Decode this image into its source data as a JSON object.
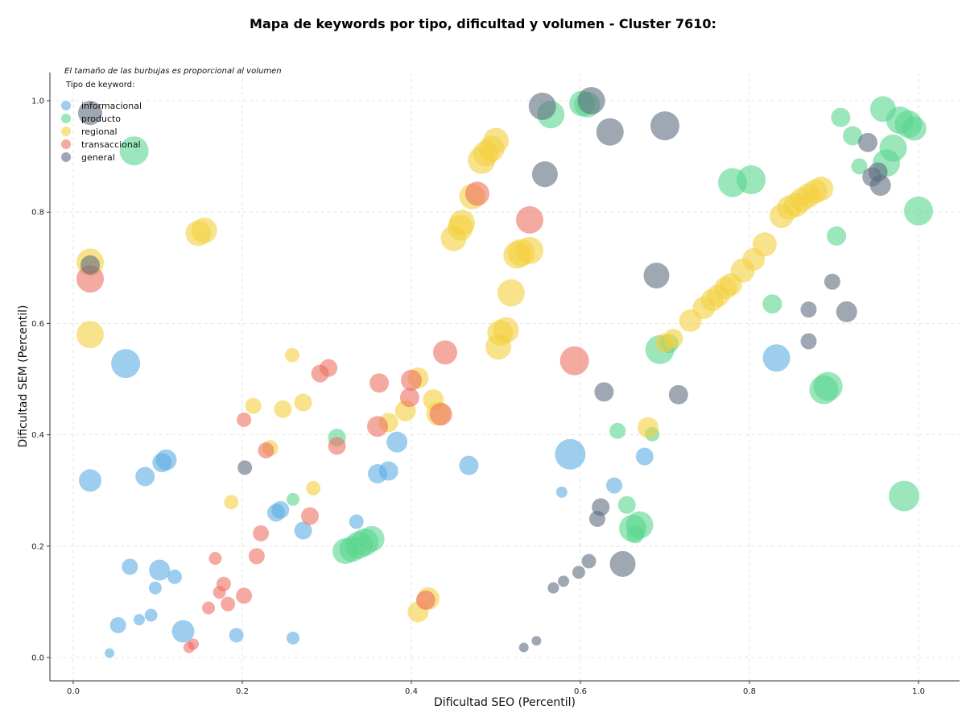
{
  "chart_data": {
    "type": "scatter",
    "title": "Mapa de keywords por tipo, dificultad y volumen - Cluster 7610:",
    "xlabel": "Dificultad SEO (Percentil)",
    "ylabel": "Dificultad SEM (Percentil)",
    "xlim": [
      -0.03,
      1.05
    ],
    "ylim": [
      -0.04,
      1.05
    ],
    "x_ticks": [
      "0.0",
      "0.2",
      "0.4",
      "0.6",
      "0.8",
      "1.0"
    ],
    "y_ticks": [
      "0.0",
      "0.2",
      "0.4",
      "0.6",
      "0.8",
      "1.0"
    ],
    "grid": true,
    "annotation": "El tamaño de las burbujas es proporcional al volumen",
    "legend_title": "Tipo de keyword:",
    "legend_position": "top-left",
    "series": [
      {
        "name": "informacional",
        "color": "#5DADE2",
        "points": [
          [
            0.062,
            0.528,
            18
          ],
          [
            0.02,
            0.318,
            14
          ],
          [
            0.085,
            0.325,
            12
          ],
          [
            0.105,
            0.35,
            12
          ],
          [
            0.11,
            0.355,
            13
          ],
          [
            0.067,
            0.163,
            10
          ],
          [
            0.102,
            0.157,
            13
          ],
          [
            0.097,
            0.125,
            8
          ],
          [
            0.12,
            0.145,
            9
          ],
          [
            0.053,
            0.058,
            10
          ],
          [
            0.078,
            0.068,
            7
          ],
          [
            0.092,
            0.076,
            8
          ],
          [
            0.13,
            0.047,
            14
          ],
          [
            0.043,
            0.008,
            6
          ],
          [
            0.193,
            0.04,
            9
          ],
          [
            0.26,
            0.035,
            8
          ],
          [
            0.24,
            0.26,
            11
          ],
          [
            0.245,
            0.265,
            11
          ],
          [
            0.272,
            0.228,
            11
          ],
          [
            0.335,
            0.244,
            9
          ],
          [
            0.36,
            0.33,
            12
          ],
          [
            0.373,
            0.335,
            12
          ],
          [
            0.383,
            0.387,
            13
          ],
          [
            0.468,
            0.345,
            12
          ],
          [
            0.588,
            0.365,
            19
          ],
          [
            0.578,
            0.297,
            7
          ],
          [
            0.64,
            0.309,
            10
          ],
          [
            0.676,
            0.361,
            11
          ],
          [
            0.832,
            0.538,
            17
          ]
        ]
      },
      {
        "name": "producto",
        "color": "#58D68D",
        "points": [
          [
            0.072,
            0.91,
            18
          ],
          [
            0.312,
            0.395,
            11
          ],
          [
            0.26,
            0.284,
            8
          ],
          [
            0.322,
            0.191,
            16
          ],
          [
            0.33,
            0.195,
            16
          ],
          [
            0.338,
            0.202,
            17
          ],
          [
            0.345,
            0.207,
            17
          ],
          [
            0.353,
            0.213,
            16
          ],
          [
            0.565,
            0.975,
            17
          ],
          [
            0.602,
            0.995,
            16
          ],
          [
            0.608,
            0.993,
            16
          ],
          [
            0.644,
            0.407,
            10
          ],
          [
            0.655,
            0.274,
            11
          ],
          [
            0.662,
            0.232,
            17
          ],
          [
            0.67,
            0.238,
            17
          ],
          [
            0.665,
            0.221,
            11
          ],
          [
            0.685,
            0.401,
            9
          ],
          [
            0.694,
            0.553,
            18
          ],
          [
            0.705,
            0.564,
            12
          ],
          [
            0.78,
            0.853,
            18
          ],
          [
            0.802,
            0.858,
            18
          ],
          [
            0.827,
            0.635,
            12
          ],
          [
            0.888,
            0.481,
            18
          ],
          [
            0.893,
            0.487,
            18
          ],
          [
            0.903,
            0.757,
            12
          ],
          [
            0.908,
            0.97,
            12
          ],
          [
            0.922,
            0.937,
            12
          ],
          [
            0.93,
            0.882,
            10
          ],
          [
            0.958,
            0.985,
            16
          ],
          [
            0.978,
            0.965,
            17
          ],
          [
            0.988,
            0.958,
            17
          ],
          [
            0.995,
            0.95,
            15
          ],
          [
            1.0,
            0.802,
            18
          ],
          [
            0.962,
            0.888,
            17
          ],
          [
            0.97,
            0.915,
            17
          ],
          [
            0.983,
            0.29,
            19
          ]
        ]
      },
      {
        "name": "regional",
        "color": "#F4D03F",
        "points": [
          [
            0.02,
            0.71,
            17
          ],
          [
            0.02,
            0.58,
            17
          ],
          [
            0.148,
            0.762,
            16
          ],
          [
            0.155,
            0.767,
            16
          ],
          [
            0.259,
            0.543,
            9
          ],
          [
            0.213,
            0.452,
            10
          ],
          [
            0.248,
            0.446,
            11
          ],
          [
            0.272,
            0.458,
            11
          ],
          [
            0.233,
            0.376,
            10
          ],
          [
            0.284,
            0.304,
            9
          ],
          [
            0.187,
            0.279,
            9
          ],
          [
            0.373,
            0.422,
            12
          ],
          [
            0.393,
            0.443,
            13
          ],
          [
            0.408,
            0.502,
            13
          ],
          [
            0.426,
            0.463,
            13
          ],
          [
            0.432,
            0.438,
            15
          ],
          [
            0.408,
            0.082,
            13
          ],
          [
            0.42,
            0.106,
            14
          ],
          [
            0.45,
            0.753,
            16
          ],
          [
            0.458,
            0.772,
            16
          ],
          [
            0.46,
            0.781,
            16
          ],
          [
            0.472,
            0.828,
            16
          ],
          [
            0.483,
            0.893,
            17
          ],
          [
            0.488,
            0.905,
            16
          ],
          [
            0.495,
            0.914,
            16
          ],
          [
            0.5,
            0.928,
            16
          ],
          [
            0.503,
            0.558,
            16
          ],
          [
            0.505,
            0.583,
            16
          ],
          [
            0.512,
            0.588,
            16
          ],
          [
            0.518,
            0.655,
            17
          ],
          [
            0.525,
            0.723,
            17
          ],
          [
            0.53,
            0.727,
            17
          ],
          [
            0.54,
            0.731,
            17
          ],
          [
            0.68,
            0.413,
            13
          ],
          [
            0.7,
            0.565,
            12
          ],
          [
            0.71,
            0.573,
            12
          ],
          [
            0.73,
            0.605,
            14
          ],
          [
            0.746,
            0.628,
            14
          ],
          [
            0.756,
            0.642,
            14
          ],
          [
            0.763,
            0.65,
            14
          ],
          [
            0.772,
            0.664,
            14
          ],
          [
            0.778,
            0.67,
            14
          ],
          [
            0.792,
            0.695,
            15
          ],
          [
            0.805,
            0.715,
            14
          ],
          [
            0.818,
            0.742,
            15
          ],
          [
            0.838,
            0.793,
            15
          ],
          [
            0.847,
            0.808,
            15
          ],
          [
            0.855,
            0.813,
            15
          ],
          [
            0.862,
            0.822,
            15
          ],
          [
            0.87,
            0.83,
            15
          ],
          [
            0.878,
            0.837,
            15
          ],
          [
            0.885,
            0.842,
            15
          ]
        ]
      },
      {
        "name": "transaccional",
        "color": "#EC7063",
        "points": [
          [
            0.02,
            0.68,
            17
          ],
          [
            0.202,
            0.427,
            9
          ],
          [
            0.228,
            0.372,
            10
          ],
          [
            0.222,
            0.223,
            10
          ],
          [
            0.217,
            0.182,
            10
          ],
          [
            0.168,
            0.178,
            8
          ],
          [
            0.178,
            0.132,
            9
          ],
          [
            0.173,
            0.117,
            8
          ],
          [
            0.183,
            0.096,
            9
          ],
          [
            0.16,
            0.089,
            8
          ],
          [
            0.202,
            0.111,
            10
          ],
          [
            0.137,
            0.018,
            7
          ],
          [
            0.142,
            0.024,
            7
          ],
          [
            0.28,
            0.254,
            11
          ],
          [
            0.312,
            0.38,
            11
          ],
          [
            0.292,
            0.51,
            11
          ],
          [
            0.302,
            0.52,
            11
          ],
          [
            0.362,
            0.493,
            12
          ],
          [
            0.36,
            0.415,
            13
          ],
          [
            0.398,
            0.467,
            12
          ],
          [
            0.4,
            0.498,
            13
          ],
          [
            0.435,
            0.437,
            14
          ],
          [
            0.44,
            0.548,
            15
          ],
          [
            0.417,
            0.103,
            12
          ],
          [
            0.478,
            0.833,
            15
          ],
          [
            0.54,
            0.786,
            17
          ],
          [
            0.593,
            0.533,
            18
          ]
        ]
      },
      {
        "name": "general",
        "color": "#5D6D7E",
        "points": [
          [
            0.02,
            0.978,
            15
          ],
          [
            0.02,
            0.705,
            12
          ],
          [
            0.203,
            0.341,
            9
          ],
          [
            0.555,
            0.99,
            17
          ],
          [
            0.558,
            0.868,
            16
          ],
          [
            0.613,
            1.0,
            17
          ],
          [
            0.635,
            0.944,
            17
          ],
          [
            0.7,
            0.955,
            18
          ],
          [
            0.69,
            0.686,
            16
          ],
          [
            0.628,
            0.477,
            12
          ],
          [
            0.716,
            0.472,
            12
          ],
          [
            0.624,
            0.27,
            11
          ],
          [
            0.62,
            0.249,
            10
          ],
          [
            0.65,
            0.168,
            16
          ],
          [
            0.61,
            0.173,
            9
          ],
          [
            0.598,
            0.153,
            8
          ],
          [
            0.58,
            0.137,
            7
          ],
          [
            0.568,
            0.125,
            7
          ],
          [
            0.548,
            0.03,
            6
          ],
          [
            0.533,
            0.018,
            6
          ],
          [
            0.87,
            0.625,
            10
          ],
          [
            0.87,
            0.568,
            10
          ],
          [
            0.898,
            0.675,
            10
          ],
          [
            0.915,
            0.621,
            13
          ],
          [
            0.94,
            0.925,
            12
          ],
          [
            0.945,
            0.863,
            12
          ],
          [
            0.952,
            0.872,
            12
          ],
          [
            0.955,
            0.848,
            13
          ]
        ]
      }
    ]
  }
}
